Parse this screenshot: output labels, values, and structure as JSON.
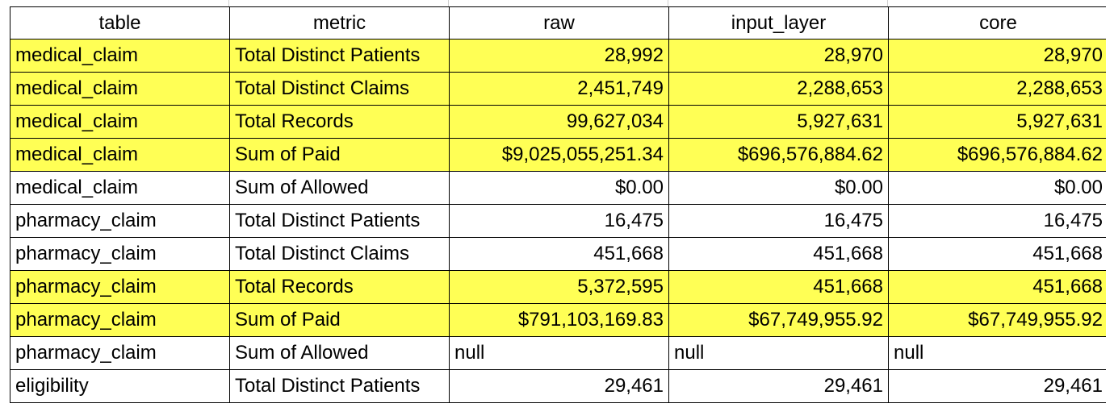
{
  "header": {
    "table": "table",
    "metric": "metric",
    "raw": "raw",
    "input_layer": "input_layer",
    "core": "core"
  },
  "rows": [
    {
      "table": "medical_claim",
      "metric": "Total Distinct Patients",
      "raw": "28,992",
      "input_layer": "28,970",
      "core": "28,970",
      "highlight": true
    },
    {
      "table": "medical_claim",
      "metric": "Total Distinct Claims",
      "raw": "2,451,749",
      "input_layer": "2,288,653",
      "core": "2,288,653",
      "highlight": true
    },
    {
      "table": "medical_claim",
      "metric": "Total Records",
      "raw": "99,627,034",
      "input_layer": "5,927,631",
      "core": "5,927,631",
      "highlight": true
    },
    {
      "table": "medical_claim",
      "metric": "Sum of Paid",
      "raw": "$9,025,055,251.34",
      "input_layer": "$696,576,884.62",
      "core": "$696,576,884.62",
      "highlight": true
    },
    {
      "table": "medical_claim",
      "metric": "Sum of Allowed",
      "raw": "$0.00",
      "input_layer": "$0.00",
      "core": "$0.00",
      "highlight": false
    },
    {
      "table": "pharmacy_claim",
      "metric": "Total Distinct Patients",
      "raw": "16,475",
      "input_layer": "16,475",
      "core": "16,475",
      "highlight": false
    },
    {
      "table": "pharmacy_claim",
      "metric": "Total Distinct Claims",
      "raw": "451,668",
      "input_layer": "451,668",
      "core": "451,668",
      "highlight": false
    },
    {
      "table": "pharmacy_claim",
      "metric": "Total Records",
      "raw": "5,372,595",
      "input_layer": "451,668",
      "core": "451,668",
      "highlight": true
    },
    {
      "table": "pharmacy_claim",
      "metric": "Sum of Paid",
      "raw": "$791,103,169.83",
      "input_layer": "$67,749,955.92",
      "core": "$67,749,955.92",
      "highlight": true
    },
    {
      "table": "pharmacy_claim",
      "metric": "Sum of Allowed",
      "raw": "null",
      "input_layer": "null",
      "core": "null",
      "highlight": false
    },
    {
      "table": "eligibility",
      "metric": "Total Distinct Patients",
      "raw": "29,461",
      "input_layer": "29,461",
      "core": "29,461",
      "highlight": false
    }
  ],
  "colors": {
    "highlight": "#ffff55",
    "border": "#000000",
    "background": "#ffffff"
  }
}
